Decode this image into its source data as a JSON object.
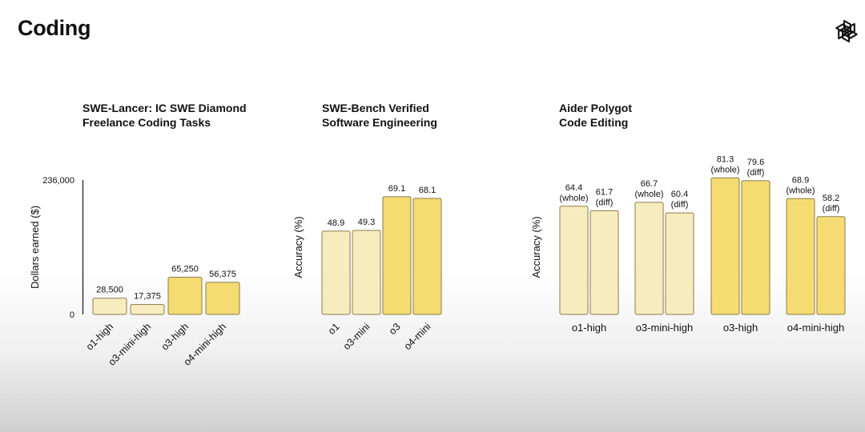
{
  "page": {
    "title": "Coding",
    "logo_icon": "openai-logo-icon"
  },
  "colors": {
    "bar_light": "#f7ecbe",
    "bar_dark": "#f4dc72",
    "bar_stroke": "#8b7b4c",
    "axis": "#222222"
  },
  "chart_data": [
    {
      "type": "bar",
      "title_lines": [
        "SWE-Lancer: IC SWE Diamond",
        "Freelance Coding Tasks"
      ],
      "ylabel": "Dollars earned ($)",
      "y_tick_labels": [
        "236,000",
        "0"
      ],
      "ylim": [
        0,
        236000
      ],
      "categories": [
        "o1-high",
        "o3-mini-high",
        "o3-high",
        "o4-mini-high"
      ],
      "values": [
        28500,
        17375,
        65250,
        56375
      ],
      "value_labels": [
        "28,500",
        "17,375",
        "65,250",
        "56,375"
      ],
      "highlight": [
        false,
        false,
        true,
        true
      ],
      "rotated_categories": true
    },
    {
      "type": "bar",
      "title_lines": [
        "SWE-Bench Verified",
        "Software Engineering"
      ],
      "ylabel": "Accuracy (%)",
      "ylim": [
        0,
        100
      ],
      "categories": [
        "o1",
        "o3-mini",
        "o3",
        "o4-mini"
      ],
      "values": [
        48.9,
        49.3,
        69.1,
        68.1
      ],
      "value_labels": [
        "48.9",
        "49.3",
        "69.1",
        "68.1"
      ],
      "highlight": [
        false,
        false,
        true,
        true
      ],
      "rotated_categories": true
    },
    {
      "type": "bar",
      "title_lines": [
        "Aider Polygot",
        "Code Editing"
      ],
      "ylabel": "Accuracy (%)",
      "ylim": [
        0,
        100
      ],
      "categories": [
        "o1-high",
        "o3-mini-high",
        "o3-high",
        "o4-mini-high"
      ],
      "series": [
        {
          "name": "(whole)",
          "values": [
            64.4,
            66.7,
            81.3,
            68.9
          ]
        },
        {
          "name": "(diff)",
          "values": [
            61.7,
            60.4,
            79.6,
            58.2
          ]
        }
      ],
      "highlight": [
        false,
        false,
        true,
        true
      ],
      "rotated_categories": false
    }
  ]
}
